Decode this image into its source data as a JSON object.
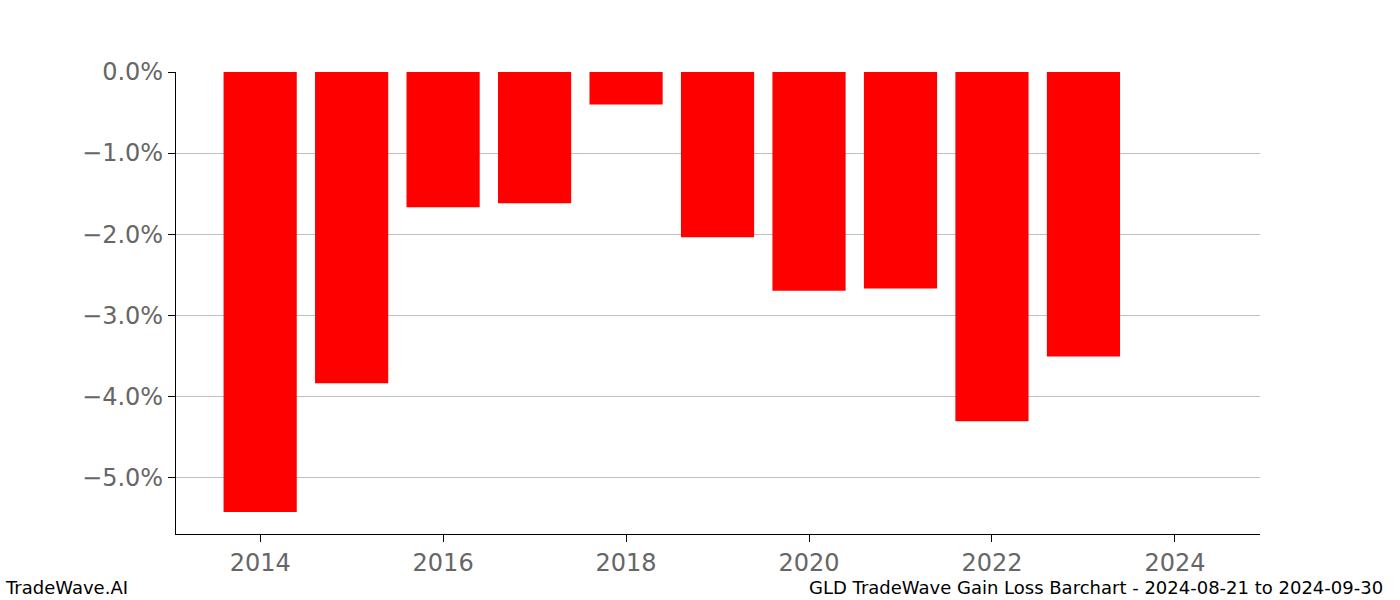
{
  "chart_data": {
    "type": "bar",
    "x": [
      2014,
      2015,
      2016,
      2017,
      2018,
      2019,
      2020,
      2021,
      2022,
      2023
    ],
    "values": [
      -5.43,
      -3.84,
      -1.67,
      -1.62,
      -0.4,
      -2.04,
      -2.7,
      -2.67,
      -4.31,
      -3.51
    ],
    "color": "#ff0000",
    "xlim": [
      2013.08,
      2024.93
    ],
    "xticks": [
      2014,
      2016,
      2018,
      2020,
      2022,
      2024
    ],
    "ylim": [
      -5.7,
      0
    ],
    "yticks": [
      {
        "value": 0,
        "label": "0.0%"
      },
      {
        "value": -1,
        "label": "−1.0%"
      },
      {
        "value": -2,
        "label": "−2.0%"
      },
      {
        "value": -3,
        "label": "−3.0%"
      },
      {
        "value": -4,
        "label": "−4.0%"
      },
      {
        "value": -5,
        "label": "−5.0%"
      }
    ],
    "grid": true,
    "annotations": [
      "TradeWave.AI",
      "GLD TradeWave Gain Loss Barchart - 2024-08-21 to 2024-09-30"
    ]
  }
}
